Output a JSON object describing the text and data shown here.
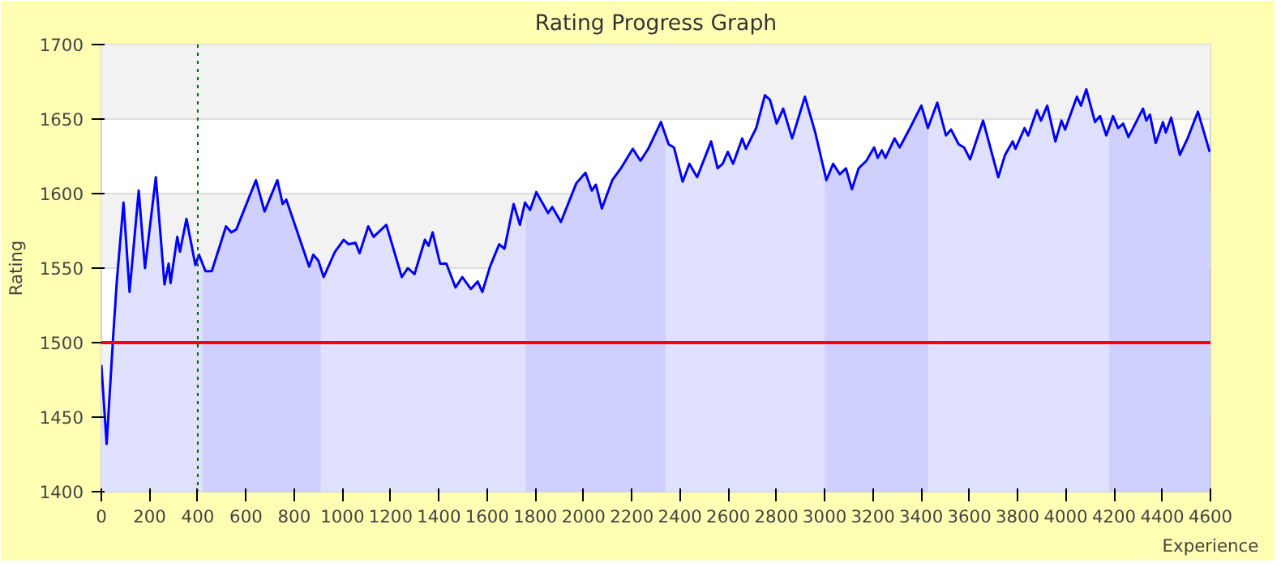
{
  "chart_data": {
    "type": "area",
    "title": "Rating Progress Graph",
    "xlabel": "Experience",
    "ylabel": "Rating",
    "xlim": [
      0,
      4600
    ],
    "xticks": [
      0,
      200,
      400,
      600,
      800,
      1000,
      1200,
      1400,
      1600,
      1800,
      2000,
      2200,
      2400,
      2600,
      2800,
      3000,
      3200,
      3400,
      3600,
      3800,
      4000,
      4200,
      4400,
      4600
    ],
    "ylim": [
      1400,
      1700
    ],
    "yticks": [
      1400,
      1450,
      1500,
      1550,
      1600,
      1650,
      1700
    ],
    "grid": "y",
    "series": [
      {
        "color": "#0000ff",
        "x": [
          0,
          22,
          49,
          64,
          92,
          117,
          155,
          181,
          226,
          262,
          279,
          287,
          315,
          326,
          353,
          390,
          405,
          432,
          458,
          517,
          539,
          560,
          641,
          677,
          730,
          752,
          767,
          862,
          879,
          900,
          922,
          969,
          1005,
          1026,
          1054,
          1071,
          1107,
          1129,
          1182,
          1246,
          1271,
          1299,
          1342,
          1357,
          1374,
          1405,
          1431,
          1469,
          1497,
          1533,
          1561,
          1580,
          1612,
          1650,
          1672,
          1710,
          1736,
          1757,
          1778,
          1804,
          1853,
          1870,
          1906,
          1970,
          2008,
          2034,
          2051,
          2076,
          2119,
          2155,
          2204,
          2236,
          2268,
          2321,
          2353,
          2375,
          2411,
          2439,
          2471,
          2529,
          2556,
          2577,
          2598,
          2620,
          2658,
          2673,
          2716,
          2752,
          2773,
          2801,
          2828,
          2865,
          2918,
          2961,
          3007,
          3035,
          3063,
          3088,
          3113,
          3141,
          3173,
          3205,
          3220,
          3237,
          3252,
          3290,
          3311,
          3354,
          3401,
          3428,
          3467,
          3503,
          3524,
          3556,
          3578,
          3603,
          3657,
          3720,
          3748,
          3780,
          3791,
          3829,
          3844,
          3880,
          3897,
          3923,
          3957,
          3982,
          3997,
          4046,
          4063,
          4085,
          4121,
          4142,
          4168,
          4196,
          4217,
          4238,
          4260,
          4320,
          4334,
          4349,
          4373,
          4403,
          4415,
          4437,
          4473,
          4505,
          4548,
          4597
        ],
        "values": [
          1485,
          1432,
          1504,
          1541,
          1594,
          1534,
          1602,
          1550,
          1611,
          1539,
          1553,
          1540,
          1571,
          1561,
          1583,
          1552,
          1559,
          1548,
          1548,
          1578,
          1574,
          1576,
          1609,
          1588,
          1609,
          1593,
          1596,
          1551,
          1559,
          1555,
          1544,
          1561,
          1569,
          1566,
          1567,
          1560,
          1578,
          1571,
          1579,
          1544,
          1550,
          1546,
          1569,
          1565,
          1574,
          1553,
          1553,
          1537,
          1544,
          1536,
          1541,
          1534,
          1551,
          1566,
          1563,
          1593,
          1579,
          1594,
          1589,
          1601,
          1587,
          1591,
          1581,
          1607,
          1614,
          1602,
          1606,
          1590,
          1609,
          1617,
          1630,
          1622,
          1630,
          1648,
          1633,
          1631,
          1608,
          1620,
          1611,
          1635,
          1617,
          1620,
          1628,
          1620,
          1637,
          1630,
          1644,
          1666,
          1663,
          1647,
          1657,
          1637,
          1665,
          1641,
          1609,
          1620,
          1613,
          1617,
          1603,
          1617,
          1622,
          1631,
          1624,
          1629,
          1624,
          1637,
          1631,
          1644,
          1659,
          1644,
          1661,
          1639,
          1643,
          1633,
          1631,
          1623,
          1649,
          1611,
          1626,
          1635,
          1630,
          1644,
          1639,
          1656,
          1649,
          1659,
          1635,
          1649,
          1643,
          1665,
          1659,
          1670,
          1648,
          1652,
          1639,
          1652,
          1644,
          1647,
          1638,
          1657,
          1649,
          1653,
          1634,
          1648,
          1641,
          1651,
          1626,
          1637,
          1655,
          1628
        ]
      }
    ],
    "ref_lines": [
      {
        "axis": "y",
        "value": 1500,
        "color": "#ff0000",
        "line_style": "solid"
      },
      {
        "axis": "x",
        "value": 400,
        "color": "#006600",
        "line_style": "dotted"
      }
    ],
    "bands": [
      {
        "axis": "x",
        "from": 420,
        "to": 910,
        "color": "#0000ff"
      },
      {
        "axis": "x",
        "from": 1760,
        "to": 2340,
        "color": "#0000ff"
      },
      {
        "axis": "x",
        "from": 3000,
        "to": 3430,
        "color": "#0000ff"
      },
      {
        "axis": "x",
        "from": 4180,
        "to": 4600,
        "color": "#0000ff"
      }
    ]
  }
}
